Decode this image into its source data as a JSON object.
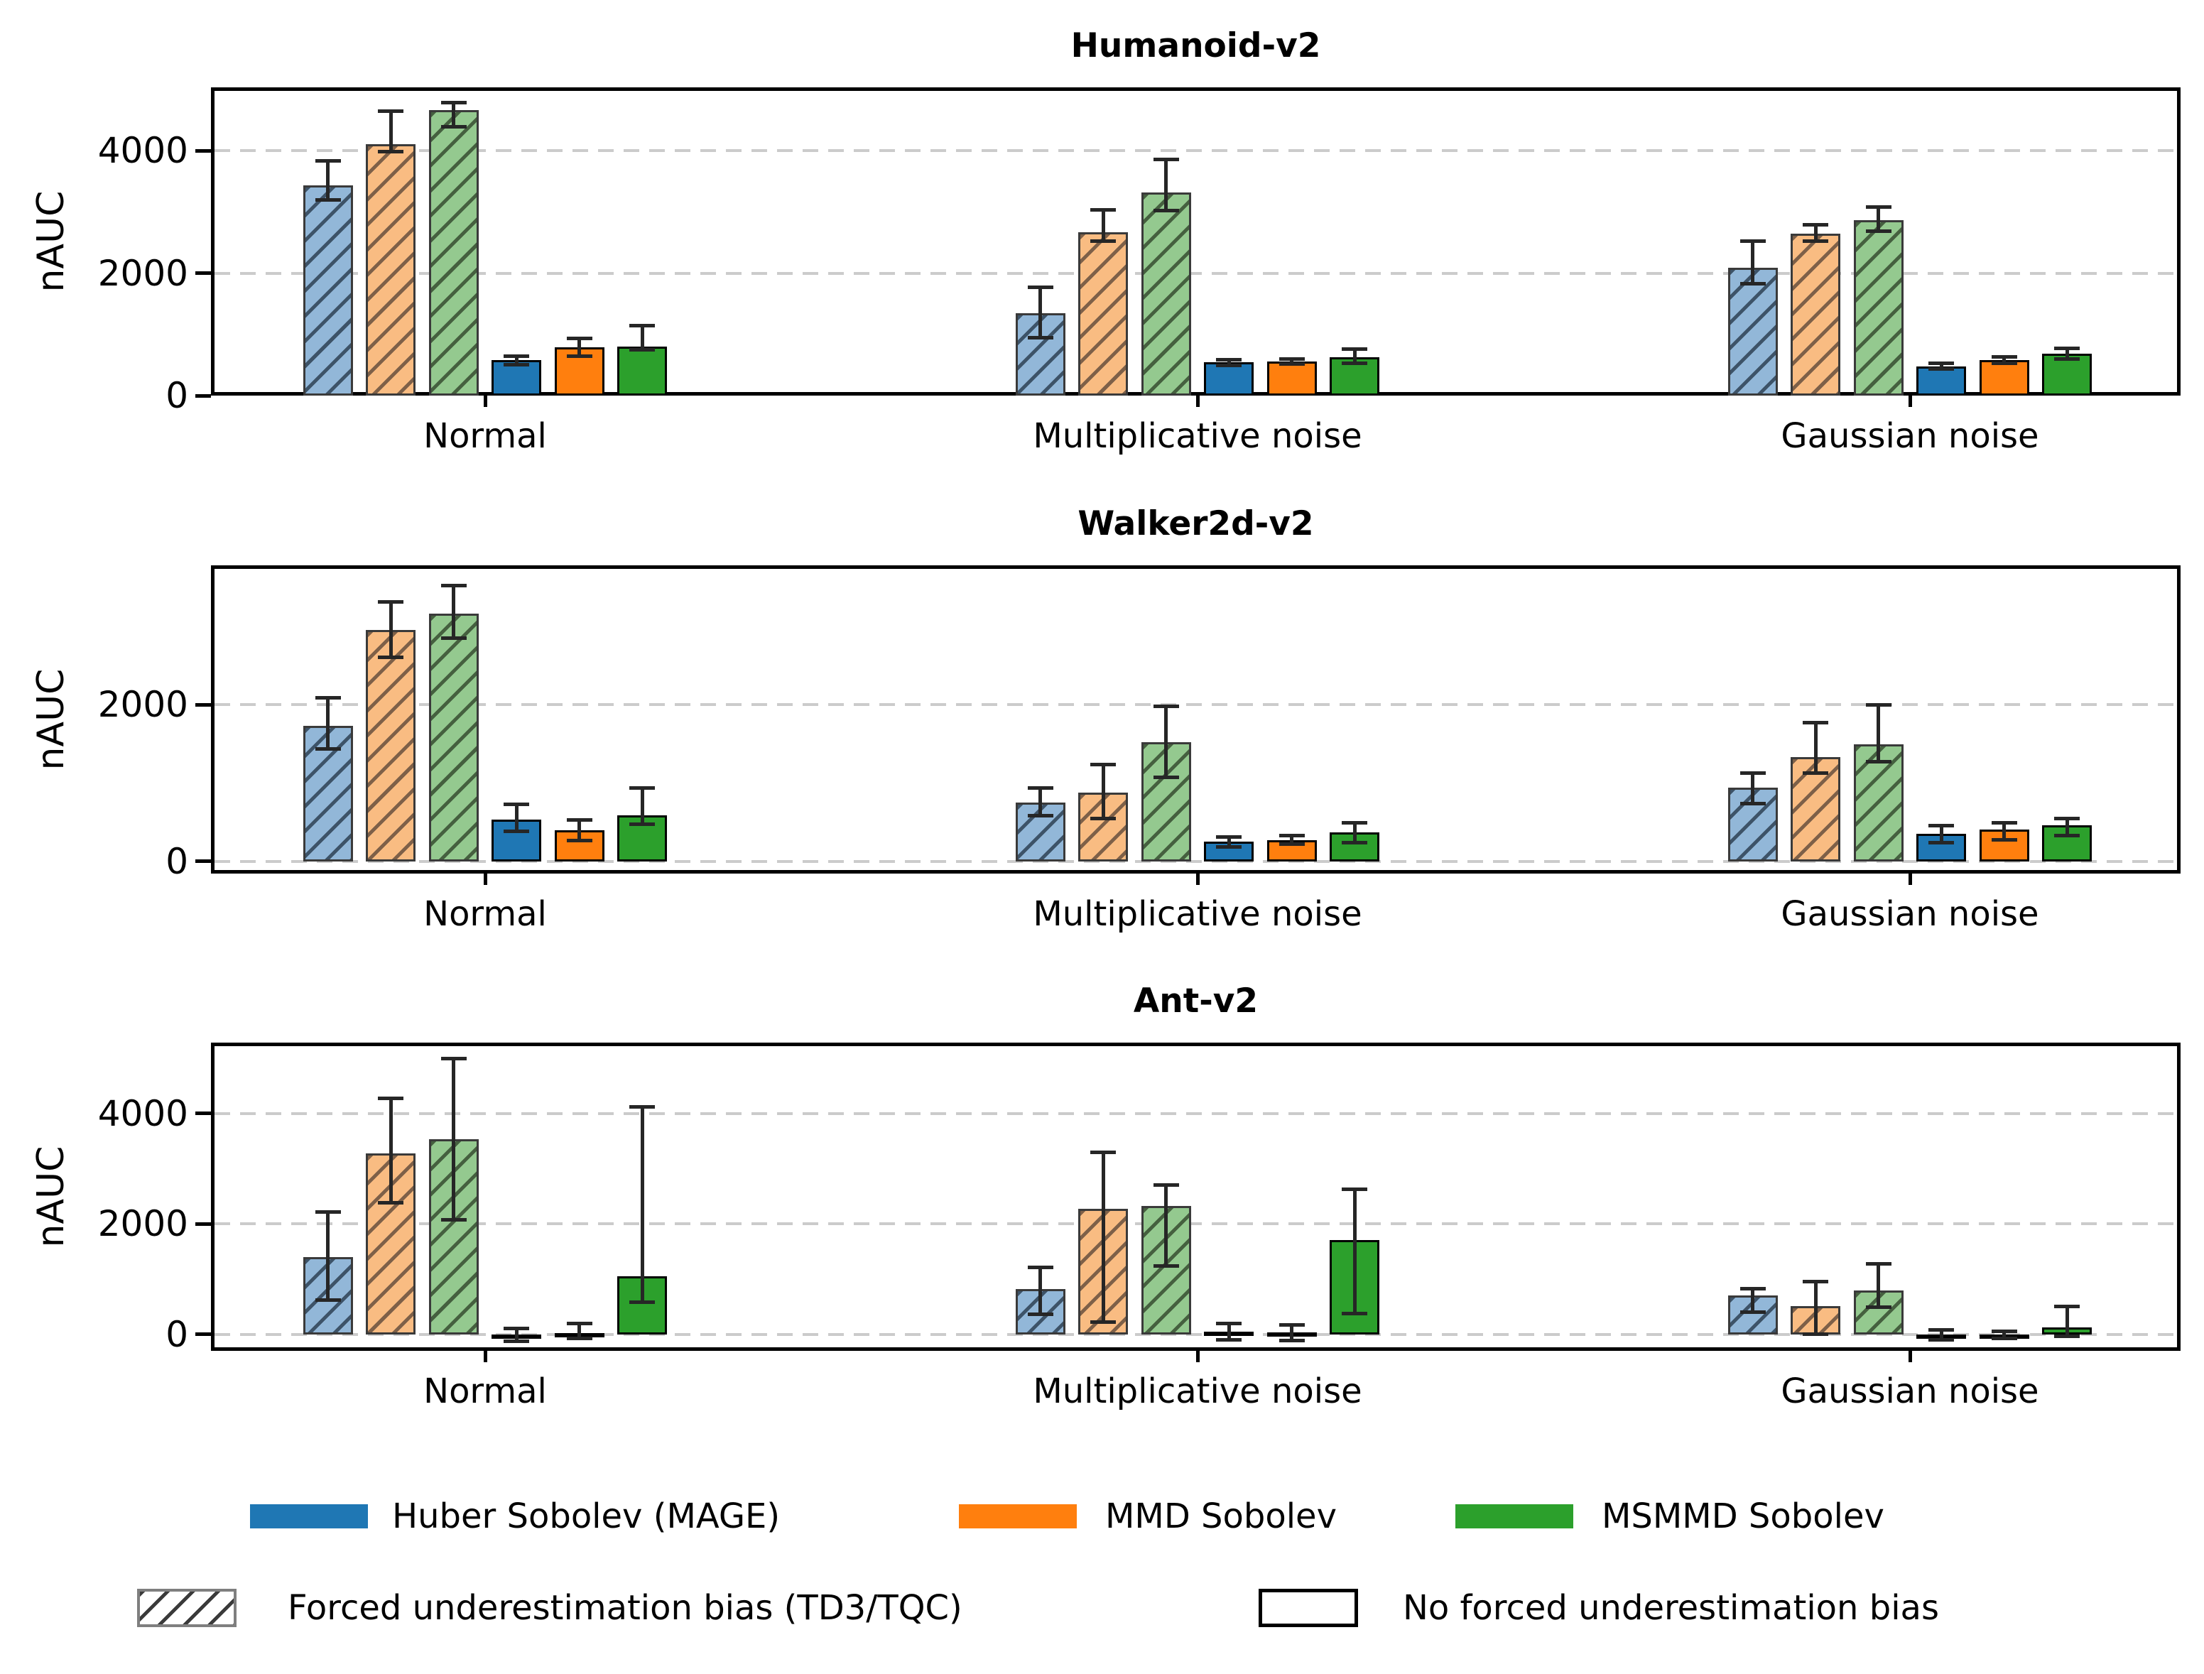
{
  "figure": {
    "ylabel": "nAUC",
    "background": "#ffffff",
    "colors": {
      "huber": {
        "solid": "#1f77b4",
        "light": "#92b7d8",
        "hatch": "#3d5368"
      },
      "mmd": {
        "solid": "#ff7f0e",
        "light": "#f9bc82",
        "hatch": "#7e6048"
      },
      "msmmd": {
        "solid": "#2ca02c",
        "light": "#94c98f",
        "hatch": "#45603f"
      },
      "grid": "#cbcbcb",
      "axis": "#000000",
      "error_bar": "#262626"
    }
  },
  "legend": {
    "series": [
      {
        "label": "Huber Sobolev (MAGE)",
        "color_key": "huber"
      },
      {
        "label": "MMD Sobolev",
        "color_key": "mmd"
      },
      {
        "label": "MSMMD Sobolev",
        "color_key": "msmmd"
      }
    ],
    "styles": [
      {
        "label": "Forced underestimation bias (TD3/TQC)",
        "hatched": true
      },
      {
        "label": "No forced underestimation bias",
        "hatched": false
      }
    ]
  },
  "chart_data": [
    {
      "type": "bar",
      "title": "Humanoid-v2",
      "ylabel": "nAUC",
      "categories": [
        "Normal",
        "Multiplicative noise",
        "Gaussian noise"
      ],
      "yticks": [
        0,
        2000,
        4000
      ],
      "ylim": [
        0,
        5035
      ],
      "grid": true,
      "series": [
        {
          "name": "Huber Sobolev (MAGE)",
          "bias": "forced",
          "hatched": true,
          "color_key": "huber",
          "values": [
            3430,
            1340,
            2090
          ],
          "err_low": [
            3200,
            945,
            1830
          ],
          "err_high": [
            3840,
            1770,
            2520
          ]
        },
        {
          "name": "MMD Sobolev",
          "bias": "forced",
          "hatched": true,
          "color_key": "mmd",
          "values": [
            4105,
            2670,
            2645
          ],
          "err_low": [
            3990,
            2520,
            2525
          ],
          "err_high": [
            4650,
            3030,
            2785
          ]
        },
        {
          "name": "MSMMD Sobolev",
          "bias": "forced",
          "hatched": true,
          "color_key": "msmmd",
          "values": [
            4665,
            3320,
            2860
          ],
          "err_low": [
            4395,
            3020,
            2680
          ],
          "err_high": [
            4780,
            3860,
            3085
          ]
        },
        {
          "name": "Huber Sobolev (MAGE)",
          "bias": "none",
          "hatched": false,
          "color_key": "huber",
          "values": [
            585,
            540,
            480
          ],
          "err_low": [
            505,
            490,
            430
          ],
          "err_high": [
            645,
            590,
            530
          ]
        },
        {
          "name": "MMD Sobolev",
          "bias": "none",
          "hatched": false,
          "color_key": "mmd",
          "values": [
            790,
            555,
            580
          ],
          "err_low": [
            645,
            515,
            530
          ],
          "err_high": [
            935,
            595,
            630
          ]
        },
        {
          "name": "MSMMD Sobolev",
          "bias": "none",
          "hatched": false,
          "color_key": "msmmd",
          "values": [
            800,
            625,
            685
          ],
          "err_low": [
            745,
            530,
            595
          ],
          "err_high": [
            1140,
            765,
            775
          ]
        }
      ]
    },
    {
      "type": "bar",
      "title": "Walker2d-v2",
      "ylabel": "nAUC",
      "categories": [
        "Normal",
        "Multiplicative noise",
        "Gaussian noise"
      ],
      "yticks": [
        0,
        2000
      ],
      "ylim": [
        -155,
        3775
      ],
      "grid": true,
      "series": [
        {
          "name": "Huber Sobolev (MAGE)",
          "bias": "forced",
          "hatched": true,
          "color_key": "huber",
          "values": [
            1730,
            750,
            945
          ],
          "err_low": [
            1430,
            585,
            740
          ],
          "err_high": [
            2090,
            935,
            1125
          ]
        },
        {
          "name": "MMD Sobolev",
          "bias": "forced",
          "hatched": true,
          "color_key": "mmd",
          "values": [
            2950,
            880,
            1330
          ],
          "err_low": [
            2600,
            545,
            1125
          ],
          "err_high": [
            3310,
            1235,
            1765
          ]
        },
        {
          "name": "MSMMD Sobolev",
          "bias": "forced",
          "hatched": true,
          "color_key": "msmmd",
          "values": [
            3160,
            1520,
            1495
          ],
          "err_low": [
            2850,
            1070,
            1270
          ],
          "err_high": [
            3520,
            1980,
            2000
          ]
        },
        {
          "name": "Huber Sobolev (MAGE)",
          "bias": "none",
          "hatched": false,
          "color_key": "huber",
          "values": [
            530,
            250,
            355
          ],
          "err_low": [
            380,
            185,
            240
          ],
          "err_high": [
            730,
            315,
            460
          ]
        },
        {
          "name": "MMD Sobolev",
          "bias": "none",
          "hatched": false,
          "color_key": "mmd",
          "values": [
            400,
            275,
            405
          ],
          "err_low": [
            270,
            225,
            275
          ],
          "err_high": [
            530,
            325,
            490
          ]
        },
        {
          "name": "MSMMD Sobolev",
          "bias": "none",
          "hatched": false,
          "color_key": "msmmd",
          "values": [
            590,
            370,
            460
          ],
          "err_low": [
            470,
            240,
            330
          ],
          "err_high": [
            935,
            490,
            545
          ]
        }
      ]
    },
    {
      "type": "bar",
      "title": "Ant-v2",
      "ylabel": "nAUC",
      "categories": [
        "Normal",
        "Multiplicative noise",
        "Gaussian noise"
      ],
      "yticks": [
        0,
        2000,
        4000
      ],
      "ylim": [
        -300,
        5285
      ],
      "grid": true,
      "series": [
        {
          "name": "Huber Sobolev (MAGE)",
          "bias": "forced",
          "hatched": true,
          "color_key": "huber",
          "values": [
            1400,
            820,
            700
          ],
          "err_low": [
            615,
            365,
            405
          ],
          "err_high": [
            2210,
            1210,
            830
          ]
        },
        {
          "name": "MMD Sobolev",
          "bias": "forced",
          "hatched": true,
          "color_key": "mmd",
          "values": [
            3280,
            2270,
            515
          ],
          "err_low": [
            2380,
            215,
            5
          ],
          "err_high": [
            4280,
            3295,
            955
          ]
        },
        {
          "name": "MSMMD Sobolev",
          "bias": "forced",
          "hatched": true,
          "color_key": "msmmd",
          "values": [
            3535,
            2330,
            800
          ],
          "err_low": [
            2070,
            1240,
            485
          ],
          "err_high": [
            4990,
            2700,
            1280
          ]
        },
        {
          "name": "Huber Sobolev (MAGE)",
          "bias": "none",
          "hatched": false,
          "color_key": "huber",
          "values": [
            -40,
            45,
            -35
          ],
          "err_low": [
            -125,
            -95,
            -100
          ],
          "err_high": [
            105,
            200,
            75
          ]
        },
        {
          "name": "MMD Sobolev",
          "bias": "none",
          "hatched": false,
          "color_key": "mmd",
          "values": [
            20,
            35,
            -15
          ],
          "err_low": [
            -70,
            -110,
            -75
          ],
          "err_high": [
            190,
            175,
            55
          ]
        },
        {
          "name": "MSMMD Sobolev",
          "bias": "none",
          "hatched": false,
          "color_key": "msmmd",
          "values": [
            1055,
            1710,
            130
          ],
          "err_low": [
            585,
            370,
            -40
          ],
          "err_high": [
            4120,
            2630,
            500
          ]
        }
      ]
    }
  ]
}
